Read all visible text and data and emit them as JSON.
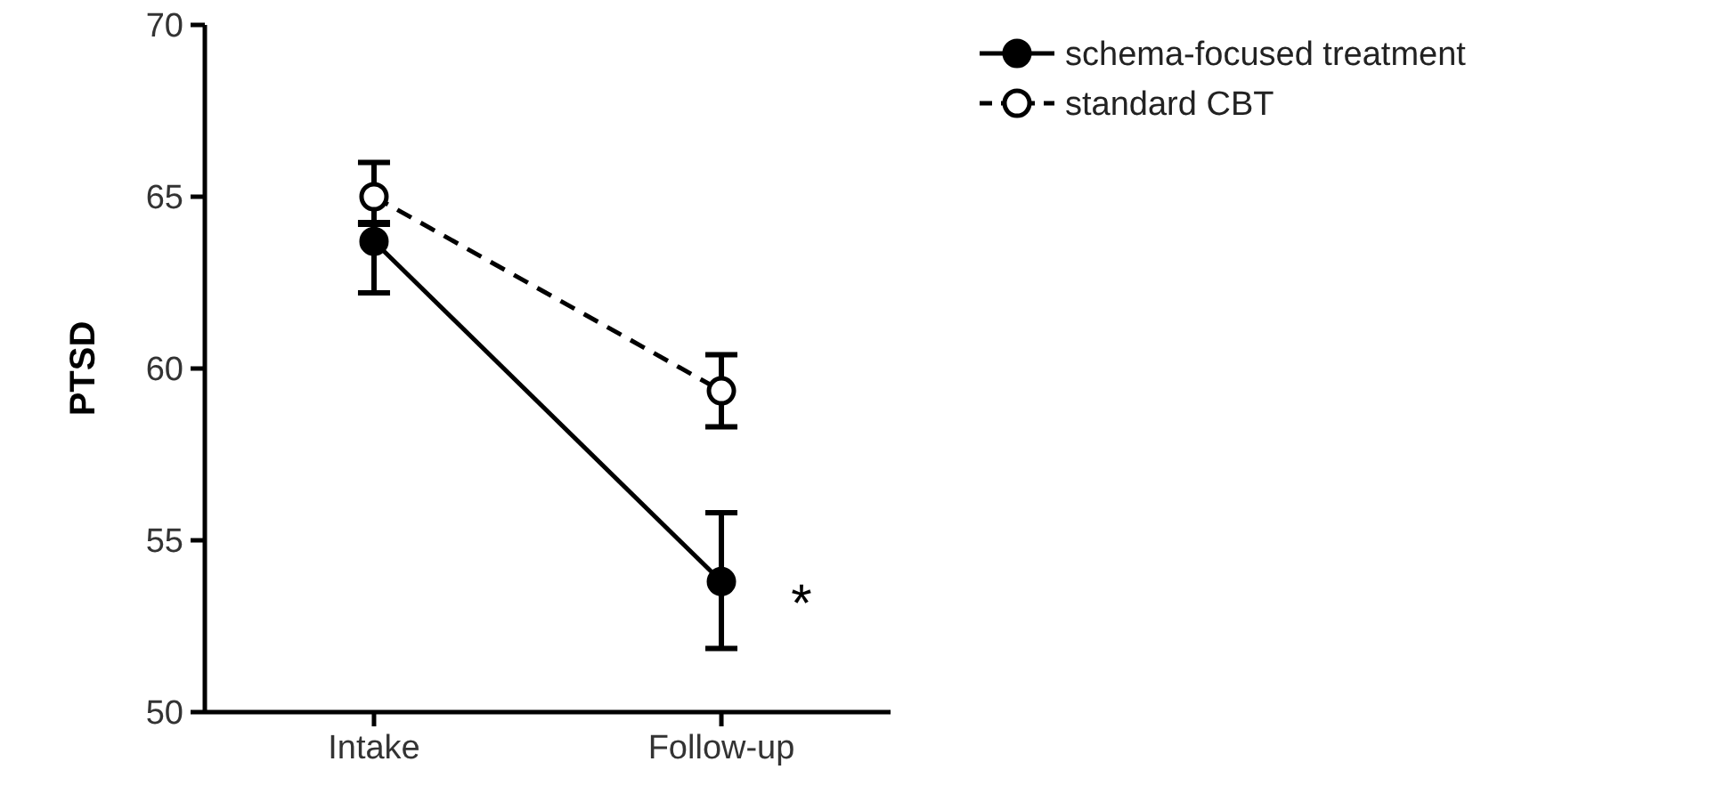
{
  "chart_data": {
    "type": "line",
    "ylabel": "PTSD",
    "categories": [
      "Intake",
      "Follow-up"
    ],
    "series": [
      {
        "name": "schema-focused treatment",
        "color": "#000000",
        "values": [
          63.7,
          53.8
        ],
        "errors": [
          [
            62.2,
            64.2
          ],
          [
            51.85,
            55.8
          ]
        ],
        "marker": "circle",
        "line_style": "solid"
      },
      {
        "name": "standard CBT",
        "color": "#000000",
        "values": [
          65.0,
          59.35
        ],
        "errors": [
          [
            64.25,
            66.0
          ],
          [
            58.3,
            60.4
          ]
        ],
        "marker": "circle",
        "line_style": "dashed"
      }
    ],
    "ylim": [
      50,
      70
    ],
    "yticks": [
      50,
      55,
      60,
      65,
      70
    ],
    "grid": false,
    "legend": "top right",
    "annotations": [
      {
        "text": "*",
        "x": "Follow-up",
        "y": 53.8
      }
    ]
  }
}
